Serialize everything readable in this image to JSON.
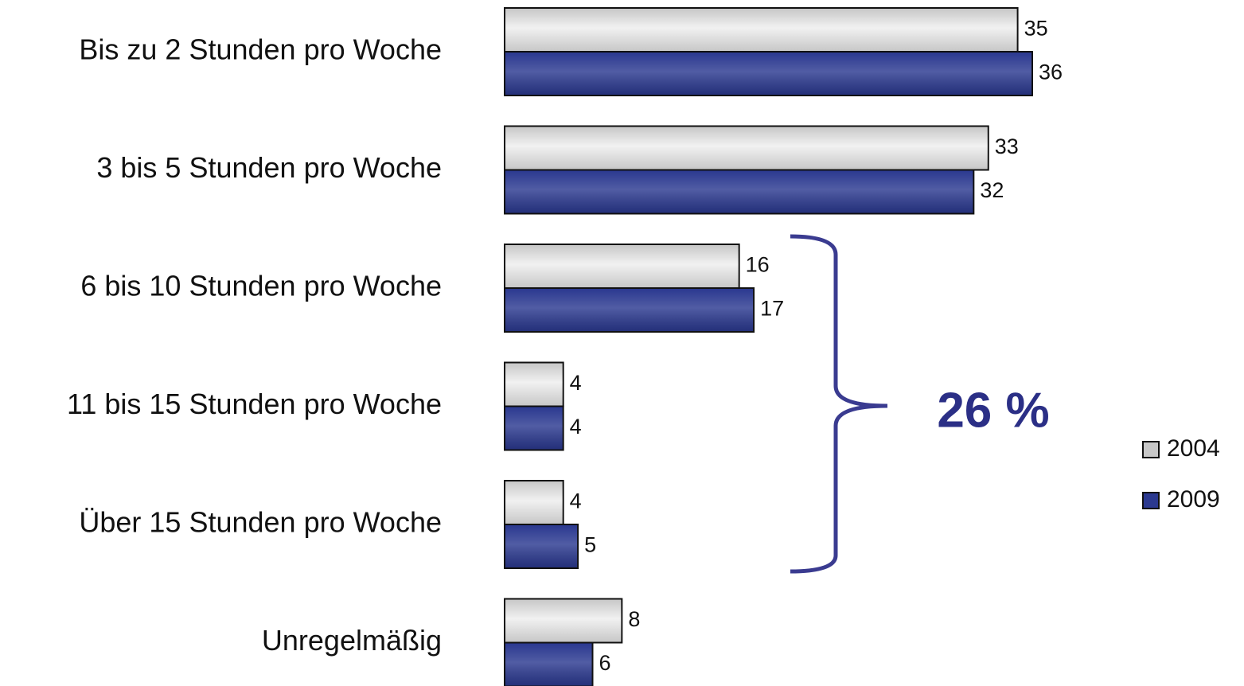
{
  "chart_data": {
    "type": "bar",
    "orientation": "horizontal",
    "categories": [
      "Bis zu 2 Stunden pro Woche",
      "3 bis 5 Stunden pro Woche",
      "6 bis 10 Stunden pro Woche",
      "11 bis 15 Stunden pro Woche",
      "Über 15 Stunden pro Woche",
      "Unregelmäßig"
    ],
    "series": [
      {
        "name": "2004",
        "color": "#c8c8c8",
        "values": [
          35,
          33,
          16,
          4,
          4,
          8
        ]
      },
      {
        "name": "2009",
        "color": "#2b3990",
        "values": [
          36,
          32,
          17,
          4,
          5,
          6
        ]
      }
    ],
    "annotation": "26 %",
    "legend": "right"
  }
}
